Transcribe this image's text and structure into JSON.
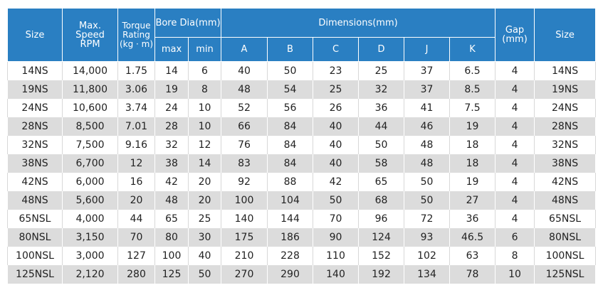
{
  "header": {
    "size": "Size",
    "max_speed": "Max.\nSpeed\nRPM",
    "torque": "Torque\nRating\n(kg · m)",
    "bore": "Bore Dia(mm)",
    "dimensions": "Dimensions(mm)",
    "gap": "Gap\n(mm)",
    "size_right": "Size",
    "bore_max": "max",
    "bore_min": "min",
    "dim_cols": [
      "A",
      "B",
      "C",
      "D",
      "J",
      "K"
    ]
  },
  "rows": [
    [
      "14NS",
      "14,000",
      "1.75",
      "14",
      "6",
      "40",
      "50",
      "23",
      "25",
      "37",
      "6.5",
      "4",
      "14NS"
    ],
    [
      "19NS",
      "11,800",
      "3.06",
      "19",
      "8",
      "48",
      "54",
      "25",
      "32",
      "37",
      "8.5",
      "4",
      "19NS"
    ],
    [
      "24NS",
      "10,600",
      "3.74",
      "24",
      "10",
      "52",
      "56",
      "26",
      "36",
      "41",
      "7.5",
      "4",
      "24NS"
    ],
    [
      "28NS",
      "8,500",
      "7.01",
      "28",
      "10",
      "66",
      "84",
      "40",
      "44",
      "46",
      "19",
      "4",
      "28NS"
    ],
    [
      "32NS",
      "7,500",
      "9.16",
      "32",
      "12",
      "76",
      "84",
      "40",
      "50",
      "48",
      "18",
      "4",
      "32NS"
    ],
    [
      "38NS",
      "6,700",
      "12",
      "38",
      "14",
      "83",
      "84",
      "40",
      "58",
      "48",
      "18",
      "4",
      "38NS"
    ],
    [
      "42NS",
      "6,000",
      "16",
      "42",
      "20",
      "92",
      "88",
      "42",
      "65",
      "50",
      "19",
      "4",
      "42NS"
    ],
    [
      "48NS",
      "5,600",
      "20",
      "48",
      "20",
      "100",
      "104",
      "50",
      "68",
      "50",
      "27",
      "4",
      "48NS"
    ],
    [
      "65NSL",
      "4,000",
      "44",
      "65",
      "25",
      "140",
      "144",
      "70",
      "96",
      "72",
      "36",
      "4",
      "65NSL"
    ],
    [
      "80NSL",
      "3,150",
      "70",
      "80",
      "30",
      "175",
      "186",
      "90",
      "124",
      "93",
      "46.5",
      "6",
      "80NSL"
    ],
    [
      "100NSL",
      "3,000",
      "127",
      "100",
      "40",
      "210",
      "228",
      "110",
      "152",
      "102",
      "63",
      "8",
      "100NSL"
    ],
    [
      "125NSL",
      "2,120",
      "280",
      "125",
      "50",
      "270",
      "290",
      "140",
      "192",
      "134",
      "78",
      "10",
      "125NSL"
    ]
  ]
}
